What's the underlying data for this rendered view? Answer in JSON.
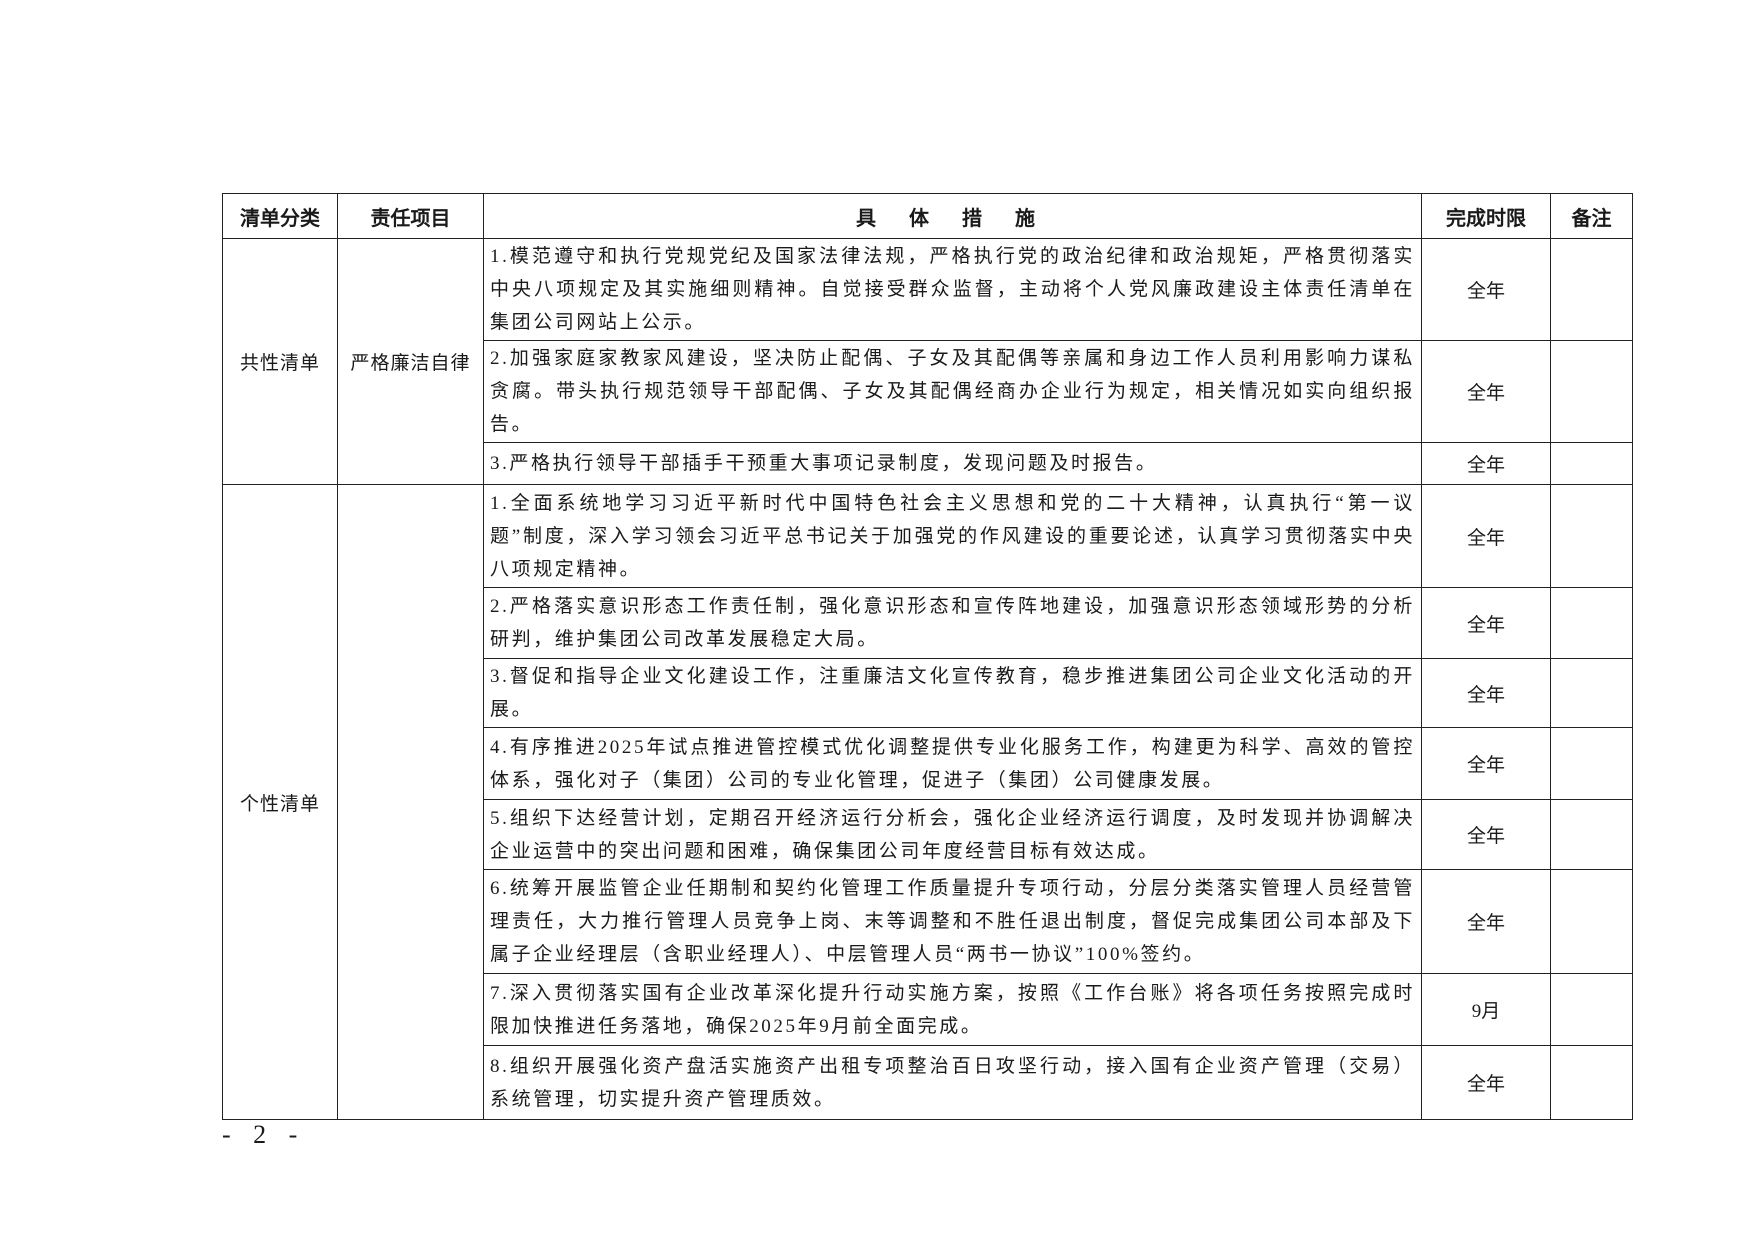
{
  "table": {
    "headers": [
      "清单分类",
      "责任项目",
      "具 体 措 施",
      "完成时限",
      "备注"
    ],
    "groups": [
      {
        "category": "共性清单",
        "item": "严格廉洁自律",
        "rows": [
          {
            "text": "1.模范遵守和执行党规党纪及国家法律法规，严格执行党的政治纪律和政治规矩，严格贯彻落实中央八项规定及其实施细则精神。自觉接受群众监督，主动将个人党风廉政建设主体责任清单在集团公司网站上公示。",
            "deadline": "全年",
            "note": ""
          },
          {
            "text": "2.加强家庭家教家风建设，坚决防止配偶、子女及其配偶等亲属和身边工作人员利用影响力谋私贪腐。带头执行规范领导干部配偶、子女及其配偶经商办企业行为规定，相关情况如实向组织报告。",
            "deadline": "全年",
            "note": ""
          },
          {
            "text": "3.严格执行领导干部插手干预重大事项记录制度，发现问题及时报告。",
            "deadline": "全年",
            "note": ""
          }
        ]
      },
      {
        "category": "个性清单",
        "item": "",
        "rows": [
          {
            "text": "1.全面系统地学习习近平新时代中国特色社会主义思想和党的二十大精神，认真执行“第一议题”制度，深入学习领会习近平总书记关于加强党的作风建设的重要论述，认真学习贯彻落实中央八项规定精神。",
            "deadline": "全年",
            "note": ""
          },
          {
            "text": "2.严格落实意识形态工作责任制，强化意识形态和宣传阵地建设，加强意识形态领域形势的分析研判，维护集团公司改革发展稳定大局。",
            "deadline": "全年",
            "note": ""
          },
          {
            "text": "3.督促和指导企业文化建设工作，注重廉洁文化宣传教育，稳步推进集团公司企业文化活动的开展。",
            "deadline": "全年",
            "note": ""
          },
          {
            "text": "4.有序推进2025年试点推进管控模式优化调整提供专业化服务工作，构建更为科学、高效的管控体系，强化对子（集团）公司的专业化管理，促进子（集团）公司健康发展。",
            "deadline": "全年",
            "note": ""
          },
          {
            "text": "5.组织下达经营计划，定期召开经济运行分析会，强化企业经济运行调度，及时发现并协调解决企业运营中的突出问题和困难，确保集团公司年度经营目标有效达成。",
            "deadline": "全年",
            "note": ""
          },
          {
            "text": "6.统筹开展监管企业任期制和契约化管理工作质量提升专项行动，分层分类落实管理人员经营管理责任，大力推行管理人员竞争上岗、末等调整和不胜任退出制度，督促完成集团公司本部及下属子企业经理层（含职业经理人）、中层管理人员“两书一协议”100%签约。",
            "deadline": "全年",
            "note": ""
          },
          {
            "text": "7.深入贯彻落实国有企业改革深化提升行动实施方案，按照《工作台账》将各项任务按照完成时限加快推进任务落地，确保2025年9月前全面完成。",
            "deadline": "9月",
            "note": ""
          },
          {
            "text": "8.组织开展强化资产盘活实施资产出租专项整治百日攻坚行动，接入国有企业资产管理（交易）系统管理，切实提升资产管理质效。",
            "deadline": "全年",
            "note": ""
          }
        ]
      }
    ]
  },
  "page_number": "- 2 -"
}
